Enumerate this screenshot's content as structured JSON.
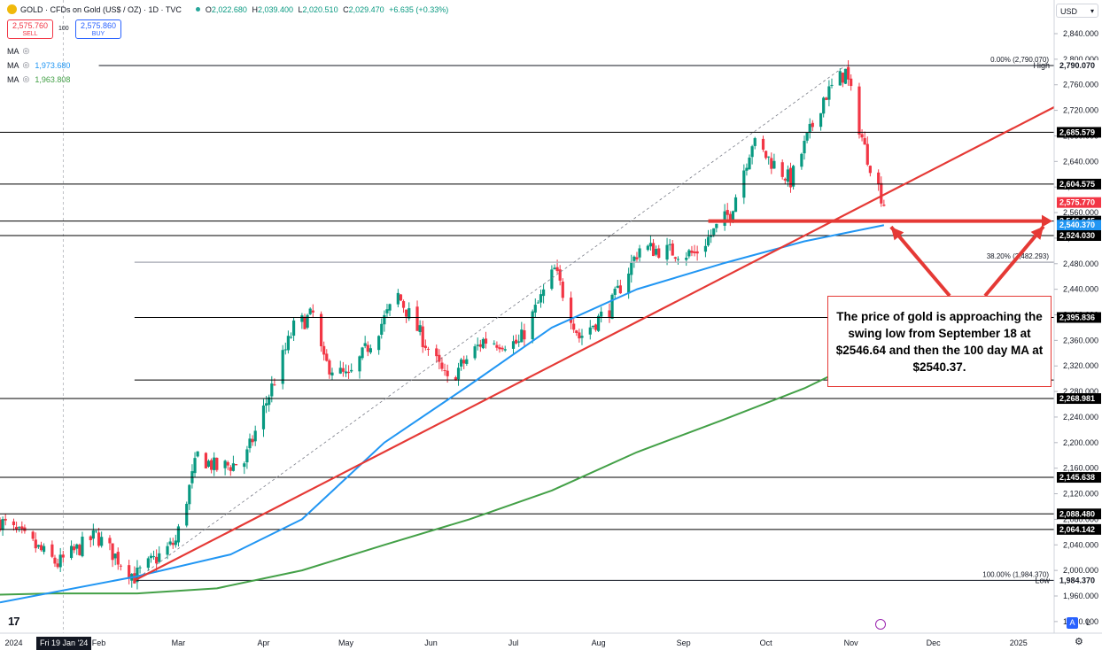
{
  "header": {
    "symbol": "GOLD · CFDs on Gold (US$ / OZ) · 1D · TVC",
    "o_label": "O",
    "o": "2,022.680",
    "h_label": "H",
    "h": "2,039.400",
    "l_label": "L",
    "l": "2,020.510",
    "c_label": "C",
    "c": "2,029.470",
    "change": "+6.635 (+0.33%)"
  },
  "trade": {
    "sell_price": "2,575.760",
    "sell_label": "SELL",
    "spread": "100",
    "buy_price": "2,575.860",
    "buy_label": "BUY"
  },
  "indicators": [
    {
      "name": "MA",
      "value": ""
    },
    {
      "name": "MA",
      "value": "1,973.680"
    },
    {
      "name": "MA",
      "value": "1,963.808"
    }
  ],
  "currency": "USD",
  "callout_text": "The price of gold is approaching the swing low from September 18 at $2546.64 and then the 100 day MA at $2540.37.",
  "bottom": {
    "date_badge": "Fri 19 Jan '24",
    "a_btn": "A",
    "l_btn": "L"
  },
  "colors": {
    "up": "#089981",
    "down": "#f23645",
    "ma100": "#2196f3",
    "ma200": "#43a047",
    "annotation": "#e53935",
    "price_label": "#f23645"
  },
  "chart_data": {
    "type": "candlestick",
    "y_range": [
      1920,
      2860
    ],
    "y_ticks": [
      1920,
      1960,
      2000,
      2040,
      2080,
      2120,
      2160,
      2200,
      2240,
      2280,
      2320,
      2360,
      2400,
      2440,
      2480,
      2520,
      2560,
      2600,
      2640,
      2680,
      2720,
      2760,
      2800,
      2840
    ],
    "x_range": [
      "2023-12-27",
      "2025-01-14"
    ],
    "x_ticks": [
      {
        "date": "2024-01-01",
        "label": "2024"
      },
      {
        "date": "2024-02-01",
        "label": "Feb"
      },
      {
        "date": "2024-03-01",
        "label": "Mar"
      },
      {
        "date": "2024-04-01",
        "label": "Apr"
      },
      {
        "date": "2024-05-01",
        "label": "May"
      },
      {
        "date": "2024-06-01",
        "label": "Jun"
      },
      {
        "date": "2024-07-01",
        "label": "Jul"
      },
      {
        "date": "2024-08-01",
        "label": "Aug"
      },
      {
        "date": "2024-09-01",
        "label": "Sep"
      },
      {
        "date": "2024-10-01",
        "label": "Oct"
      },
      {
        "date": "2024-11-01",
        "label": "Nov"
      },
      {
        "date": "2024-12-01",
        "label": "Dec"
      },
      {
        "date": "2025-01-01",
        "label": "2025"
      }
    ],
    "price_path": [
      [
        "2023-12-27",
        2077
      ],
      [
        "2024-01-05",
        2050
      ],
      [
        "2024-01-17",
        2010
      ],
      [
        "2024-01-31",
        2055
      ],
      [
        "2024-02-14",
        1990
      ],
      [
        "2024-02-29",
        2045
      ],
      [
        "2024-03-08",
        2180
      ],
      [
        "2024-03-15",
        2160
      ],
      [
        "2024-03-25",
        2170
      ],
      [
        "2024-04-12",
        2380
      ],
      [
        "2024-04-19",
        2400
      ],
      [
        "2024-04-23",
        2325
      ],
      [
        "2024-05-02",
        2300
      ],
      [
        "2024-05-20",
        2430
      ],
      [
        "2024-06-07",
        2295
      ],
      [
        "2024-06-20",
        2360
      ],
      [
        "2024-07-03",
        2355
      ],
      [
        "2024-07-16",
        2470
      ],
      [
        "2024-07-25",
        2365
      ],
      [
        "2024-08-05",
        2410
      ],
      [
        "2024-08-16",
        2505
      ],
      [
        "2024-09-05",
        2495
      ],
      [
        "2024-09-18",
        2560
      ],
      [
        "2024-09-26",
        2670
      ],
      [
        "2024-10-10",
        2610
      ],
      [
        "2024-10-22",
        2740
      ],
      [
        "2024-10-30",
        2780
      ],
      [
        "2024-11-06",
        2660
      ],
      [
        "2024-11-13",
        2575
      ]
    ],
    "ma100": [
      [
        "2023-12-27",
        1950
      ],
      [
        "2024-02-14",
        1990
      ],
      [
        "2024-03-20",
        2025
      ],
      [
        "2024-04-15",
        2080
      ],
      [
        "2024-05-15",
        2200
      ],
      [
        "2024-06-15",
        2290
      ],
      [
        "2024-07-15",
        2380
      ],
      [
        "2024-08-15",
        2440
      ],
      [
        "2024-09-15",
        2480
      ],
      [
        "2024-10-15",
        2515
      ],
      [
        "2024-11-13",
        2540.37
      ]
    ],
    "ma200": [
      [
        "2023-12-27",
        1962
      ],
      [
        "2024-01-15",
        1964
      ],
      [
        "2024-02-15",
        1964
      ],
      [
        "2024-03-15",
        1972
      ],
      [
        "2024-04-15",
        2000
      ],
      [
        "2024-05-15",
        2040
      ],
      [
        "2024-06-15",
        2080
      ],
      [
        "2024-07-15",
        2125
      ],
      [
        "2024-08-15",
        2185
      ],
      [
        "2024-09-15",
        2235
      ],
      [
        "2024-10-15",
        2285
      ],
      [
        "2024-11-13",
        2345
      ]
    ],
    "trendline": [
      [
        "2024-02-14",
        1984.37
      ],
      [
        "2025-01-14",
        2725
      ]
    ],
    "fib_line": [
      [
        "2024-02-14",
        1984.37
      ],
      [
        "2024-10-30",
        2790.07
      ]
    ],
    "fib_labels": [
      {
        "text": "0.00% (2,790.070)",
        "value": 2790.07
      },
      {
        "text": "38.20% (2,482.293)",
        "value": 2482.293
      },
      {
        "text": "100.00% (1,984.370)",
        "value": 1984.37
      }
    ],
    "swing_low_line": {
      "from": "2024-09-10",
      "to": "2025-01-14",
      "value": 2546.645
    },
    "horizontal_levels": [
      {
        "value": 2790.07,
        "label": "2,790.070",
        "tag": "High",
        "color": "#ffffff",
        "text_color": "#131722",
        "from": "2024-02-01"
      },
      {
        "value": 2685.579,
        "label": "2,685.579",
        "color": "#000000",
        "text_color": "#ffffff"
      },
      {
        "value": 2604.575,
        "label": "2,604.575",
        "color": "#000000",
        "text_color": "#ffffff"
      },
      {
        "value": 2575.77,
        "label": "2,575.770",
        "color": "#f23645",
        "text_color": "#ffffff",
        "line": false
      },
      {
        "value": 2546.645,
        "label": "2,546.645",
        "color": "#000000",
        "text_color": "#ffffff"
      },
      {
        "value": 2540.37,
        "label": "2,540.370",
        "color": "#2196f3",
        "text_color": "#ffffff",
        "line": false
      },
      {
        "value": 2524.03,
        "label": "2,524.030",
        "color": "#000000",
        "text_color": "#ffffff"
      },
      {
        "value": 2482.293,
        "label": "",
        "color": "#b2b5be",
        "from": "2024-02-14"
      },
      {
        "value": 2395.836,
        "label": "2,395.836",
        "color": "#000000",
        "text_color": "#ffffff",
        "from": "2024-02-14"
      },
      {
        "value": 2298,
        "label": "",
        "color": "#000000",
        "from": "2024-02-14"
      },
      {
        "value": 2268.981,
        "label": "2,268.981",
        "color": "#000000",
        "text_color": "#ffffff"
      },
      {
        "value": 2145.638,
        "label": "2,145.638",
        "color": "#000000",
        "text_color": "#ffffff"
      },
      {
        "value": 2088.48,
        "label": "2,088.480",
        "color": "#000000",
        "text_color": "#ffffff"
      },
      {
        "value": 2064.142,
        "label": "2,064.142",
        "color": "#000000",
        "text_color": "#ffffff"
      },
      {
        "value": 1984.37,
        "label": "1,984.370",
        "tag": "Low",
        "color": "#ffffff",
        "text_color": "#131722",
        "from": "2024-02-14"
      }
    ]
  }
}
